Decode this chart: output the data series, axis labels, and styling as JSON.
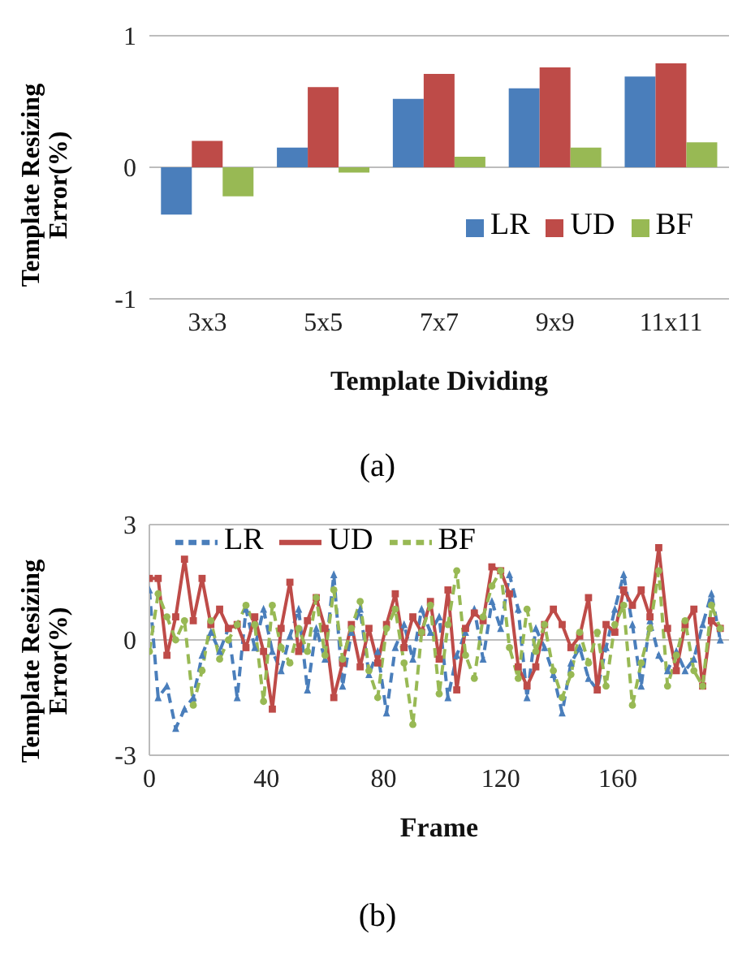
{
  "chart_data": [
    {
      "type": "bar",
      "xlabel": "Template Dividing",
      "ylabel": "Template Resizing Error(%)",
      "categories": [
        "3x3",
        "5x5",
        "7x7",
        "9x9",
        "11x11"
      ],
      "series": [
        {
          "name": "LR",
          "color": "#4a7ebb",
          "values": [
            -0.36,
            0.15,
            0.52,
            0.6,
            0.69
          ]
        },
        {
          "name": "UD",
          "color": "#be4b48",
          "values": [
            0.2,
            0.61,
            0.71,
            0.76,
            0.79
          ]
        },
        {
          "name": "BF",
          "color": "#98b954",
          "values": [
            -0.22,
            -0.04,
            0.08,
            0.15,
            0.19
          ]
        }
      ],
      "ylim": [
        -1,
        1
      ],
      "yticks": [
        -1,
        0,
        1
      ],
      "grid": "y",
      "legend": "bottom right",
      "annotations": [
        "(a)"
      ]
    },
    {
      "type": "line",
      "xlabel": "Frame",
      "ylabel": "Template Resizing Error(%)",
      "x": [
        0,
        3,
        6,
        9,
        12,
        15,
        18,
        21,
        24,
        27,
        30,
        33,
        36,
        39,
        42,
        45,
        48,
        51,
        54,
        57,
        60,
        63,
        66,
        69,
        72,
        75,
        78,
        81,
        84,
        87,
        90,
        93,
        96,
        99,
        102,
        105,
        108,
        111,
        114,
        117,
        120,
        123,
        126,
        129,
        132,
        135,
        138,
        141,
        144,
        147,
        150,
        153,
        156,
        159,
        162,
        165,
        168,
        171,
        174,
        177,
        180,
        183,
        186,
        189,
        192,
        195
      ],
      "series": [
        {
          "name": "LR",
          "color": "#4a7ebb",
          "line_style": "dashed",
          "marker": "triangle",
          "values": [
            1.3,
            -1.5,
            -1.2,
            -2.3,
            -1.8,
            -1.5,
            -0.4,
            0.2,
            -0.3,
            0.3,
            -1.5,
            0.8,
            -0.2,
            0.8,
            -0.3,
            -0.8,
            0.1,
            0.8,
            -1.3,
            0.3,
            -0.5,
            1.7,
            -1.2,
            0.2,
            0.8,
            -0.9,
            -0.3,
            -1.9,
            -0.2,
            0.4,
            -0.5,
            0.8,
            0.2,
            0.6,
            -1.5,
            -0.4,
            0.2,
            0.8,
            -0.5,
            1.0,
            0.3,
            1.7,
            0.8,
            -1.5,
            0.3,
            -0.2,
            -0.9,
            -1.9,
            -0.6,
            -0.2,
            -1.0,
            -1.3,
            -0.2,
            0.8,
            1.7,
            0.4,
            -1.2,
            0.5,
            -0.4,
            -0.8,
            -0.3,
            -0.8,
            -0.5,
            0.4,
            1.2,
            0.0
          ]
        },
        {
          "name": "UD",
          "color": "#be4b48",
          "line_style": "solid",
          "marker": "square",
          "values": [
            1.6,
            1.6,
            -0.4,
            0.6,
            2.1,
            0.5,
            1.6,
            0.4,
            0.8,
            0.3,
            0.4,
            -0.2,
            0.6,
            -0.3,
            -1.8,
            0.3,
            1.5,
            -0.3,
            0.5,
            1.1,
            0.3,
            -1.5,
            -0.6,
            0.4,
            -0.7,
            0.3,
            -0.6,
            0.4,
            1.2,
            -0.2,
            0.6,
            0.2,
            1.0,
            -0.5,
            1.3,
            -1.3,
            0.3,
            0.7,
            0.5,
            1.9,
            1.8,
            1.2,
            -0.7,
            -1.2,
            -0.7,
            0.4,
            0.8,
            0.4,
            -0.2,
            0.1,
            1.1,
            -1.3,
            0.4,
            0.2,
            1.3,
            0.9,
            1.3,
            0.6,
            2.4,
            0.3,
            -0.8,
            0.4,
            0.8,
            -1.2,
            0.5,
            0.3
          ]
        },
        {
          "name": "BF",
          "color": "#98b954",
          "line_style": "dashed",
          "marker": "circle",
          "values": [
            -0.3,
            1.2,
            0.6,
            0.0,
            0.5,
            -1.7,
            -0.8,
            0.5,
            -0.5,
            0.0,
            0.4,
            0.9,
            0.4,
            -1.6,
            0.9,
            -0.2,
            -0.6,
            0.3,
            -0.3,
            1.1,
            -0.4,
            1.3,
            -0.5,
            0.3,
            1.0,
            -0.8,
            -1.5,
            0.3,
            0.8,
            -0.6,
            -2.2,
            0.2,
            0.9,
            -1.4,
            0.4,
            1.8,
            -0.4,
            -1.0,
            0.6,
            1.4,
            1.8,
            -0.2,
            -1.0,
            0.8,
            -0.3,
            0.4,
            -0.8,
            -1.5,
            -0.9,
            0.2,
            -0.6,
            0.2,
            -1.2,
            0.4,
            0.9,
            -1.7,
            -0.6,
            0.3,
            1.8,
            -1.2,
            -0.4,
            0.5,
            -0.8,
            -1.2,
            0.9,
            0.3
          ]
        }
      ],
      "xlim": [
        0,
        198
      ],
      "xticks": [
        0,
        40,
        80,
        120,
        160
      ],
      "ylim": [
        -3,
        3
      ],
      "yticks": [
        -3,
        0,
        3
      ],
      "grid": "y",
      "legend": "top",
      "annotations": [
        "(b)"
      ]
    }
  ]
}
